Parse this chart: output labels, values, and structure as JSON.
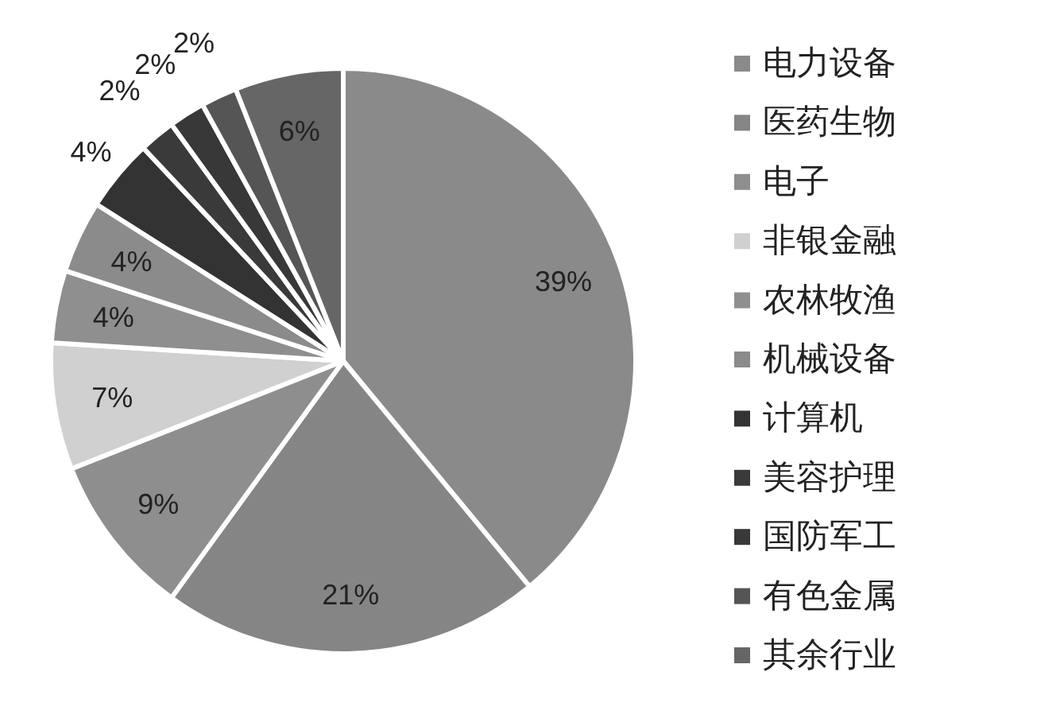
{
  "chart_data": {
    "type": "pie",
    "legend": "right",
    "categories": [
      "电力设备",
      "医药生物",
      "电子",
      "非银金融",
      "农林牧渔",
      "机械设备",
      "计算机",
      "美容护理",
      "国防军工",
      "有色金属",
      "其余行业"
    ],
    "values": [
      39,
      21,
      9,
      7,
      4,
      4,
      4,
      2,
      2,
      2,
      6
    ],
    "colors": [
      "#8a8a8a",
      "#858585",
      "#8e8e8e",
      "#d0d0d0",
      "#8f8f8f",
      "#8b8b8b",
      "#333333",
      "#3a3a3a",
      "#383838",
      "#555555",
      "#666666"
    ],
    "value_labels": [
      "39%",
      "21%",
      "9%",
      "7%",
      "4%",
      "4%",
      "4%",
      "2%",
      "2%",
      "2%",
      "6%"
    ]
  }
}
